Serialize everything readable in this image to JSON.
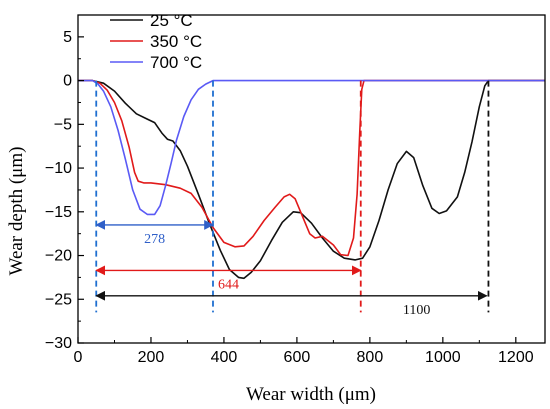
{
  "chart_data": {
    "type": "line",
    "xlabel": "Wear width (μm)",
    "ylabel": "Wear depth (μm)",
    "xlim": [
      0,
      1280
    ],
    "ylim": [
      -30,
      7.5
    ],
    "xticks": [
      0,
      200,
      400,
      600,
      800,
      1000,
      1200
    ],
    "yticks": [
      5,
      0,
      -5,
      -10,
      -15,
      -20,
      -25,
      -30
    ],
    "legend_position": "top-left",
    "series": [
      {
        "name": "25 °C",
        "color": "#111111",
        "points": [
          [
            0,
            0
          ],
          [
            40,
            0
          ],
          [
            70,
            -0.3
          ],
          [
            100,
            -1.2
          ],
          [
            130,
            -2.6
          ],
          [
            160,
            -3.8
          ],
          [
            190,
            -4.4
          ],
          [
            210,
            -4.8
          ],
          [
            230,
            -6.0
          ],
          [
            245,
            -6.7
          ],
          [
            260,
            -6.9
          ],
          [
            280,
            -8
          ],
          [
            300,
            -9.8
          ],
          [
            330,
            -13
          ],
          [
            360,
            -16.3
          ],
          [
            390,
            -19.4
          ],
          [
            415,
            -21.6
          ],
          [
            440,
            -22.5
          ],
          [
            455,
            -22.6
          ],
          [
            475,
            -21.9
          ],
          [
            500,
            -20.6
          ],
          [
            530,
            -18.3
          ],
          [
            560,
            -16.2
          ],
          [
            590,
            -15
          ],
          [
            610,
            -15.1
          ],
          [
            640,
            -16.3
          ],
          [
            670,
            -18
          ],
          [
            700,
            -19.5
          ],
          [
            730,
            -20.3
          ],
          [
            760,
            -20.5
          ],
          [
            780,
            -20.3
          ],
          [
            800,
            -19
          ],
          [
            825,
            -16
          ],
          [
            850,
            -12.5
          ],
          [
            875,
            -9.5
          ],
          [
            900,
            -8.1
          ],
          [
            920,
            -8.8
          ],
          [
            945,
            -12
          ],
          [
            970,
            -14.6
          ],
          [
            990,
            -15.2
          ],
          [
            1010,
            -14.9
          ],
          [
            1040,
            -13.3
          ],
          [
            1060,
            -10.5
          ],
          [
            1080,
            -7
          ],
          [
            1100,
            -3
          ],
          [
            1115,
            -0.6
          ],
          [
            1125,
            0
          ],
          [
            1280,
            0
          ]
        ]
      },
      {
        "name": "350 °C",
        "color": "#e11a1a",
        "points": [
          [
            0,
            0
          ],
          [
            40,
            0
          ],
          [
            60,
            -0.3
          ],
          [
            80,
            -1.1
          ],
          [
            100,
            -2.5
          ],
          [
            120,
            -4.6
          ],
          [
            140,
            -7.6
          ],
          [
            155,
            -10.5
          ],
          [
            165,
            -11.5
          ],
          [
            180,
            -11.7
          ],
          [
            200,
            -11.7
          ],
          [
            240,
            -11.9
          ],
          [
            280,
            -12.3
          ],
          [
            310,
            -12.9
          ],
          [
            340,
            -14.5
          ],
          [
            370,
            -16.8
          ],
          [
            400,
            -18.5
          ],
          [
            430,
            -19
          ],
          [
            455,
            -18.9
          ],
          [
            480,
            -17.8
          ],
          [
            510,
            -16
          ],
          [
            540,
            -14.5
          ],
          [
            565,
            -13.3
          ],
          [
            580,
            -13
          ],
          [
            595,
            -13.5
          ],
          [
            615,
            -15.5
          ],
          [
            635,
            -17.5
          ],
          [
            650,
            -18
          ],
          [
            670,
            -17.8
          ],
          [
            700,
            -18.8
          ],
          [
            720,
            -19.9
          ],
          [
            740,
            -20
          ],
          [
            755,
            -18
          ],
          [
            765,
            -13
          ],
          [
            772,
            -6
          ],
          [
            778,
            -1
          ],
          [
            784,
            0
          ],
          [
            1280,
            0
          ]
        ]
      },
      {
        "name": "700 °C",
        "color": "#5a5af5",
        "points": [
          [
            0,
            0
          ],
          [
            40,
            0
          ],
          [
            55,
            -0.4
          ],
          [
            70,
            -1.2
          ],
          [
            90,
            -3
          ],
          [
            110,
            -5.7
          ],
          [
            130,
            -9
          ],
          [
            150,
            -12.5
          ],
          [
            170,
            -14.7
          ],
          [
            190,
            -15.3
          ],
          [
            210,
            -15.3
          ],
          [
            225,
            -14.3
          ],
          [
            240,
            -12
          ],
          [
            255,
            -9.5
          ],
          [
            270,
            -6.8
          ],
          [
            290,
            -4.1
          ],
          [
            310,
            -2.2
          ],
          [
            330,
            -1
          ],
          [
            350,
            -0.4
          ],
          [
            370,
            0
          ],
          [
            1280,
            0
          ]
        ]
      }
    ],
    "annotations": [
      {
        "text": "278",
        "color": "#2f5fc8",
        "x_start": 50,
        "x_end": 370,
        "y": -16.5,
        "dashed_x": [
          50,
          370
        ],
        "dashed_color": "#1f6fd0"
      },
      {
        "text": "644",
        "color": "#e11a1a",
        "x_start": 50,
        "x_end": 775,
        "y": -21.7,
        "dashed_x": [
          775
        ],
        "dashed_color": "#e11a1a"
      },
      {
        "text": "1100",
        "color": "#111111",
        "x_start": 50,
        "x_end": 1120,
        "y": -24.6,
        "dashed_x": [
          1125
        ],
        "dashed_color": "#111111"
      }
    ]
  }
}
